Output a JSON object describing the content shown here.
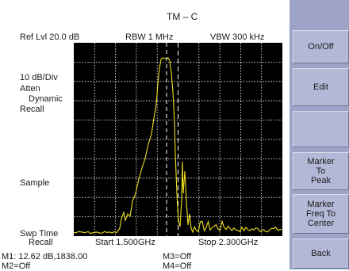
{
  "header": {
    "title": "TM – C",
    "ref_level": "Ref Lvl 20.0 dB",
    "rbw": "RBW 1 MHz",
    "vbw": "VBW 300 kHz"
  },
  "left_panel": {
    "scale": "10 dB/Div",
    "atten": "Atten",
    "dynamic": "Dynamic",
    "recall": "Recall",
    "detector": "Sample",
    "swp_time": "Swp Time",
    "swp_recall": "Recall"
  },
  "frequency": {
    "start": "Start   1.500GHz",
    "stop": "Stop   2.300GHz"
  },
  "markers": {
    "m1": "M1: 12.62 dB,1838.00",
    "m2": "M2=Off",
    "m3": "M3=Off",
    "m4": "M4=Off"
  },
  "softkeys": [
    {
      "label_lines": [
        "On/Off"
      ]
    },
    {
      "label_lines": [
        "Edit"
      ]
    },
    {
      "label_lines": [
        ""
      ]
    },
    {
      "label_lines": [
        "Marker",
        "To",
        "Peak"
      ]
    },
    {
      "label_lines": [
        "Marker",
        "Freq To",
        "Center"
      ]
    },
    {
      "label_lines": [
        "Back"
      ]
    }
  ],
  "trace": {
    "color": "#f0e020",
    "grid_color": "#ffffff"
  }
}
